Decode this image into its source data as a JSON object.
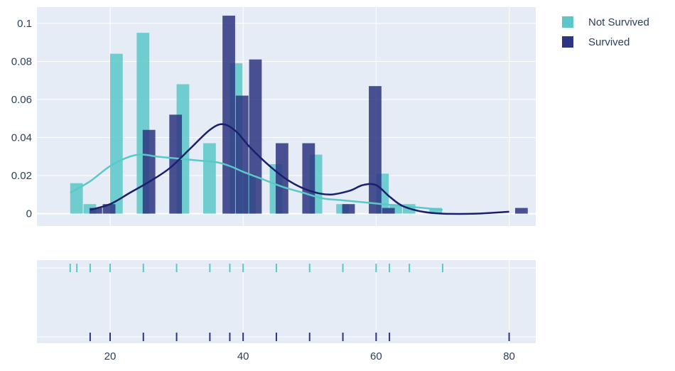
{
  "chart_data": {
    "type": "histogram-distplot",
    "title": "",
    "xlabel": "",
    "ylabel": "",
    "xlim": [
      9,
      84
    ],
    "ylim": [
      -0.0065,
      0.1085
    ],
    "x_ticks": [
      20,
      40,
      60,
      80
    ],
    "y_ticks": [
      0,
      0.02,
      0.04,
      0.06,
      0.08,
      0.1
    ],
    "y_tick_labels": [
      "0",
      "0.02",
      "0.04",
      "0.06",
      "0.08",
      "0.1"
    ],
    "x_tick_labels": [
      "20",
      "40",
      "60",
      "80"
    ],
    "grid": true,
    "legend_position": "top-right",
    "bin_width": 2,
    "series": [
      {
        "name": "Not Survived",
        "color": "#5bc8c8",
        "kde_color": "#5bc8c8",
        "bins": [
          {
            "start": 14,
            "value": 0.016
          },
          {
            "start": 16,
            "value": 0.005
          },
          {
            "start": 20,
            "value": 0.084
          },
          {
            "start": 24,
            "value": 0.095
          },
          {
            "start": 30,
            "value": 0.068
          },
          {
            "start": 34,
            "value": 0.037
          },
          {
            "start": 38,
            "value": 0.079
          },
          {
            "start": 40,
            "value": 0.021
          },
          {
            "start": 44,
            "value": 0.026
          },
          {
            "start": 50,
            "value": 0.031
          },
          {
            "start": 54,
            "value": 0.005
          },
          {
            "start": 60,
            "value": 0.021
          },
          {
            "start": 62,
            "value": 0.005
          },
          {
            "start": 64,
            "value": 0.005
          },
          {
            "start": 68,
            "value": 0.003
          }
        ],
        "kde": {
          "x": [
            14,
            17,
            20,
            23,
            25,
            27,
            30,
            33,
            36,
            38,
            40,
            43,
            46,
            49,
            52,
            55,
            58,
            61,
            64,
            67,
            70
          ],
          "y": [
            0.011,
            0.017,
            0.025,
            0.03,
            0.031,
            0.03,
            0.029,
            0.028,
            0.027,
            0.025,
            0.022,
            0.018,
            0.014,
            0.011,
            0.008,
            0.007,
            0.006,
            0.005,
            0.004,
            0.003,
            0.002
          ]
        },
        "rug": [
          14,
          15,
          17,
          20,
          25,
          30,
          35,
          38,
          40,
          45,
          50,
          55,
          60,
          62,
          65,
          70
        ]
      },
      {
        "name": "Survived",
        "color": "#2e3580",
        "kde_color": "#1a1f6e",
        "bins": [
          {
            "start": 16,
            "value": 0.003
          },
          {
            "start": 18,
            "value": 0.005
          },
          {
            "start": 24,
            "value": 0.044
          },
          {
            "start": 28,
            "value": 0.052
          },
          {
            "start": 36,
            "value": 0.104
          },
          {
            "start": 38,
            "value": 0.062
          },
          {
            "start": 40,
            "value": 0.081
          },
          {
            "start": 44,
            "value": 0.037
          },
          {
            "start": 48,
            "value": 0.037
          },
          {
            "start": 54,
            "value": 0.005
          },
          {
            "start": 58,
            "value": 0.067
          },
          {
            "start": 60,
            "value": 0.003
          },
          {
            "start": 80,
            "value": 0.003
          }
        ],
        "kde": {
          "x": [
            17,
            20,
            23,
            26,
            29,
            32,
            35,
            37,
            39,
            41,
            44,
            47,
            50,
            53,
            56,
            58,
            60,
            62,
            64,
            67,
            70,
            75,
            80
          ],
          "y": [
            0.002,
            0.005,
            0.011,
            0.017,
            0.024,
            0.034,
            0.044,
            0.047,
            0.043,
            0.035,
            0.025,
            0.017,
            0.012,
            0.01,
            0.012,
            0.015,
            0.015,
            0.009,
            0.004,
            0.001,
            0.0,
            0.0,
            0.001
          ]
        },
        "rug": [
          17,
          20,
          25,
          30,
          35,
          38,
          40,
          45,
          50,
          55,
          60,
          62,
          80
        ]
      }
    ]
  }
}
